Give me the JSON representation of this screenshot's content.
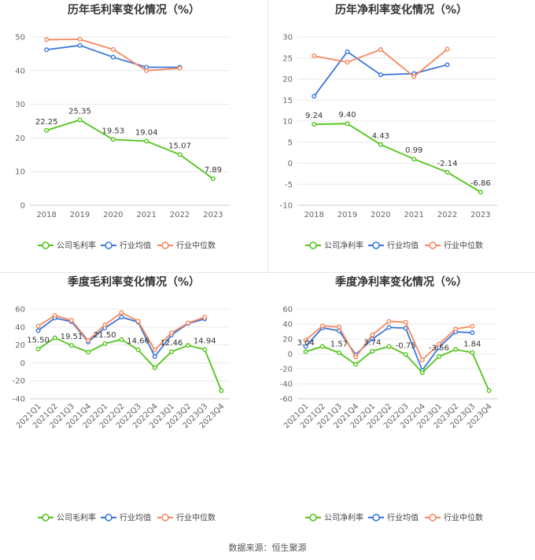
{
  "footer": "数据来源：恒生聚源",
  "chart_data": [
    {
      "type": "line",
      "title": "历年毛利率变化情况（%）",
      "x": [
        "2018",
        "2019",
        "2020",
        "2021",
        "2022",
        "2023"
      ],
      "ylim": [
        0,
        50
      ],
      "yticks": [
        0,
        10,
        20,
        30,
        40,
        50
      ],
      "rotate_x": false,
      "grid": true,
      "legend_position": "bottom",
      "series": [
        {
          "name": "公司毛利率",
          "color": "#52c41a",
          "values": [
            22.25,
            25.35,
            19.53,
            19.04,
            15.07,
            7.89
          ],
          "labels": [
            "22.25",
            "25.35",
            "19.53",
            "19.04",
            "15.07",
            "7.89"
          ]
        },
        {
          "name": "行业均值",
          "color": "#3a77d9",
          "values": [
            46.2,
            47.5,
            44.0,
            41.0,
            41.0,
            null
          ]
        },
        {
          "name": "行业中位数",
          "color": "#f5885f",
          "values": [
            49.2,
            49.3,
            46.3,
            40.0,
            40.7,
            null
          ]
        }
      ]
    },
    {
      "type": "line",
      "title": "历年净利率变化情况（%）",
      "x": [
        "2018",
        "2019",
        "2020",
        "2021",
        "2022",
        "2023"
      ],
      "ylim": [
        -10,
        30
      ],
      "yticks": [
        -10,
        -5,
        0,
        5,
        10,
        15,
        20,
        25,
        30
      ],
      "rotate_x": false,
      "grid": true,
      "legend_position": "bottom",
      "series": [
        {
          "name": "公司净利率",
          "color": "#52c41a",
          "values": [
            9.24,
            9.4,
            4.43,
            0.99,
            -2.14,
            -6.86
          ],
          "labels": [
            "9.24",
            "9.40",
            "4.43",
            "0.99",
            "-2.14",
            "-6.86"
          ]
        },
        {
          "name": "行业均值",
          "color": "#3a77d9",
          "values": [
            15.9,
            26.5,
            21.0,
            21.3,
            23.4,
            null
          ]
        },
        {
          "name": "行业中位数",
          "color": "#f5885f",
          "values": [
            25.5,
            24.0,
            27.0,
            20.6,
            27.1,
            null
          ]
        }
      ]
    },
    {
      "type": "line",
      "title": "季度毛利率变化情况（%）",
      "x": [
        "2021Q1",
        "2021Q2",
        "2021Q3",
        "2021Q4",
        "2022Q1",
        "2022Q2",
        "2022Q3",
        "2022Q4",
        "2023Q1",
        "2023Q2",
        "2023Q3",
        "2023Q4"
      ],
      "ylim": [
        -40,
        60
      ],
      "yticks": [
        -40,
        -20,
        0,
        20,
        40,
        60
      ],
      "rotate_x": true,
      "grid": true,
      "legend_position": "bottom",
      "series": [
        {
          "name": "公司毛利率",
          "color": "#52c41a",
          "values": [
            15.5,
            28.0,
            19.51,
            12.0,
            21.5,
            26.0,
            14.66,
            -5.5,
            12.46,
            19.5,
            14.94,
            -31.0
          ],
          "labels": [
            "15.50",
            "",
            "19.51",
            "",
            "21.50",
            "",
            "14.66",
            "",
            "12.46",
            "",
            "14.94",
            ""
          ]
        },
        {
          "name": "行业均值",
          "color": "#3a77d9",
          "values": [
            36.0,
            50.0,
            46.0,
            23.5,
            39.0,
            51.0,
            45.5,
            7.0,
            31.0,
            44.0,
            49.0,
            null
          ]
        },
        {
          "name": "行业中位数",
          "color": "#f5885f",
          "values": [
            41.0,
            53.0,
            47.5,
            25.0,
            42.5,
            56.0,
            46.5,
            14.5,
            33.5,
            44.5,
            51.0,
            null
          ]
        }
      ]
    },
    {
      "type": "line",
      "title": "季度净利率变化情况（%）",
      "x": [
        "2021Q1",
        "2021Q2",
        "2021Q3",
        "2021Q4",
        "2022Q1",
        "2022Q2",
        "2022Q3",
        "2022Q4",
        "2023Q1",
        "2023Q2",
        "2023Q3",
        "2023Q4"
      ],
      "ylim": [
        -60,
        60
      ],
      "yticks": [
        -60,
        -40,
        -20,
        0,
        20,
        40,
        60
      ],
      "rotate_x": true,
      "grid": true,
      "legend_position": "bottom",
      "series": [
        {
          "name": "公司净利率",
          "color": "#52c41a",
          "values": [
            3.04,
            10.0,
            1.57,
            -14.0,
            3.74,
            10.0,
            -0.75,
            -25.0,
            -3.56,
            6.0,
            1.84,
            -49.0
          ],
          "labels": [
            "3.04",
            "",
            "1.57",
            "",
            "3.74",
            "",
            "-0.75",
            "",
            "-3.56",
            "",
            "1.84",
            ""
          ]
        },
        {
          "name": "行业均值",
          "color": "#3a77d9",
          "values": [
            10.0,
            35.0,
            31.0,
            -1.0,
            20.0,
            35.5,
            34.5,
            -22.0,
            9.0,
            29.5,
            28.5,
            null
          ]
        },
        {
          "name": "行业中位数",
          "color": "#f5885f",
          "values": [
            18.5,
            37.5,
            36.0,
            -4.0,
            25.5,
            43.5,
            42.5,
            -8.0,
            13.0,
            33.5,
            37.0,
            null
          ]
        }
      ]
    }
  ]
}
